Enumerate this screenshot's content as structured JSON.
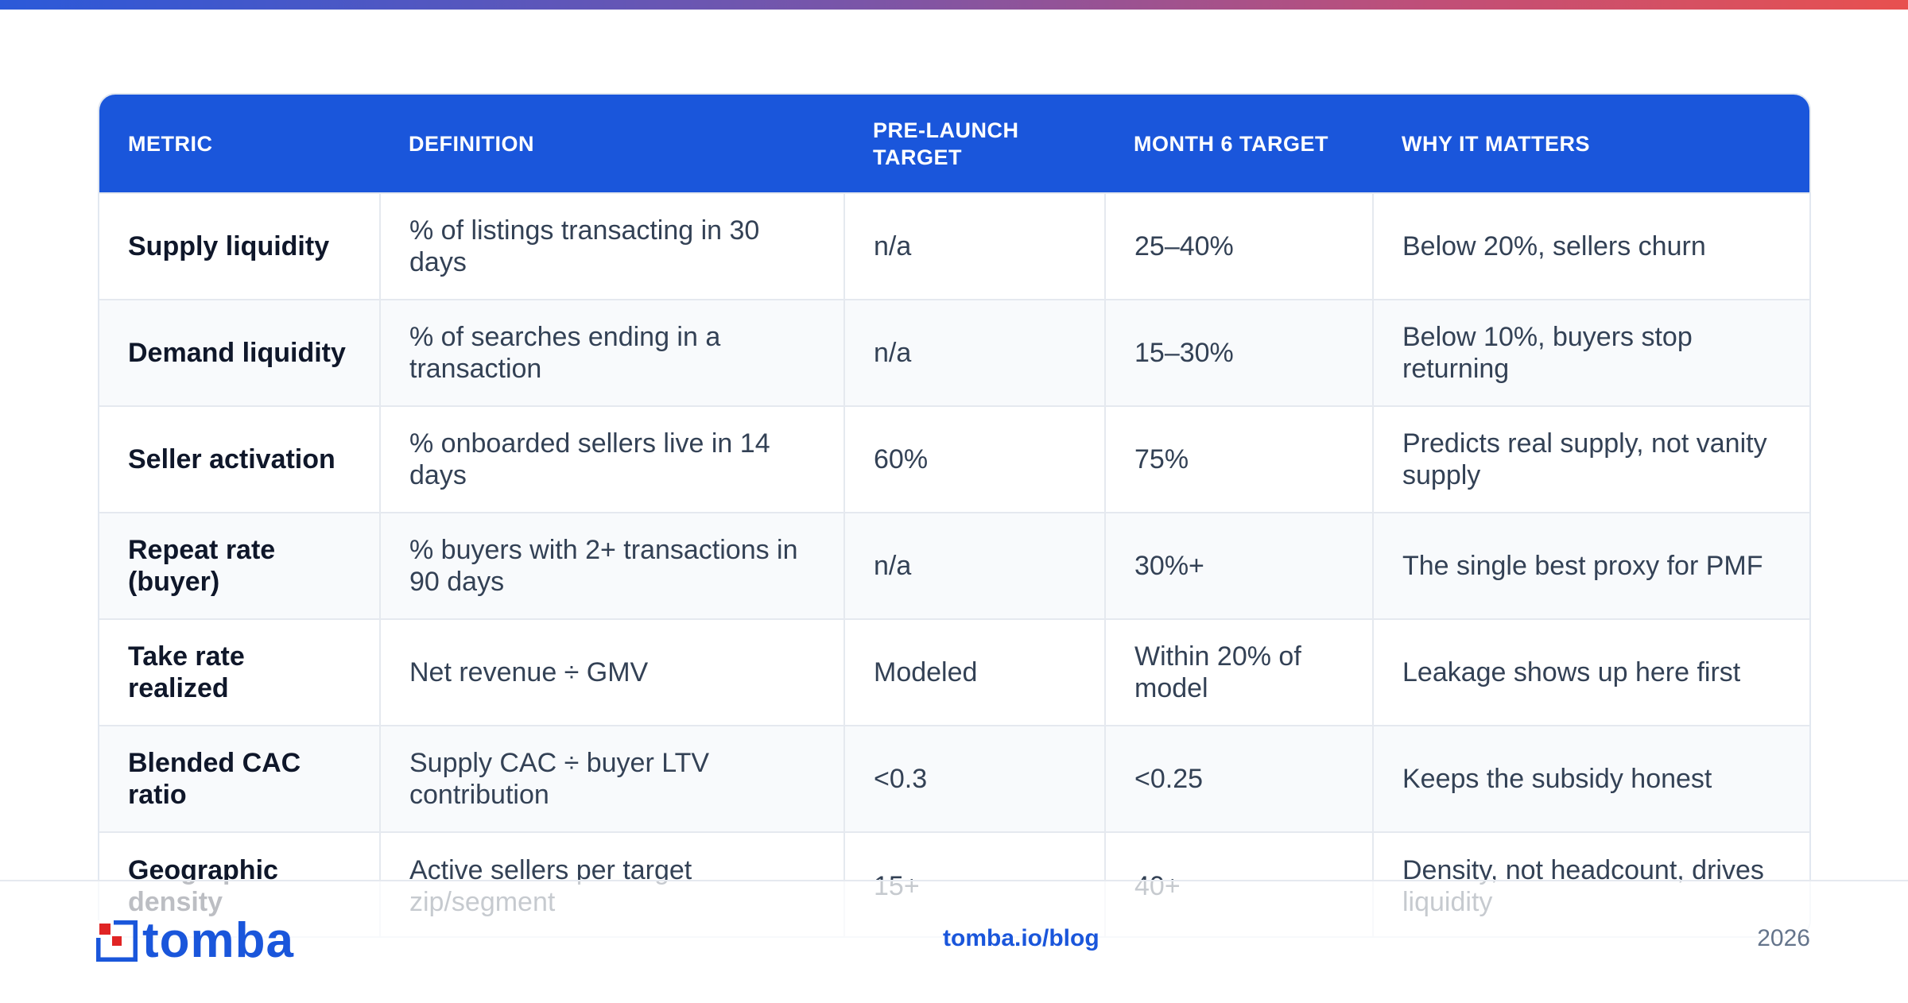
{
  "table": {
    "headers": [
      "METRIC",
      "DEFINITION",
      "PRE-LAUNCH TARGET",
      "MONTH 6 TARGET",
      "WHY IT MATTERS"
    ],
    "rows": [
      {
        "metric": "Supply liquidity",
        "definition": "% of listings transacting in 30 days",
        "pre_launch": "n/a",
        "month6": "25–40%",
        "why": "Below 20%, sellers churn"
      },
      {
        "metric": "Demand liquidity",
        "definition": "% of searches ending in a transaction",
        "pre_launch": "n/a",
        "month6": "15–30%",
        "why": "Below 10%, buyers stop returning"
      },
      {
        "metric": "Seller activation",
        "definition": "% onboarded sellers live in 14 days",
        "pre_launch": "60%",
        "month6": "75%",
        "why": "Predicts real supply, not vanity supply"
      },
      {
        "metric": "Repeat rate (buyer)",
        "definition": "% buyers with 2+ transactions in 90 days",
        "pre_launch": "n/a",
        "month6": "30%+",
        "why": "The single best proxy for PMF"
      },
      {
        "metric": "Take rate realized",
        "definition": "Net revenue ÷ GMV",
        "pre_launch": "Modeled",
        "month6": "Within 20% of model",
        "why": "Leakage shows up here first"
      },
      {
        "metric": "Blended CAC ratio",
        "definition": "Supply CAC ÷ buyer LTV contribution",
        "pre_launch": "<0.3",
        "month6": "<0.25",
        "why": "Keeps the subsidy honest"
      },
      {
        "metric": "Geographic density",
        "definition": "Active sellers per target zip/segment",
        "pre_launch": "15+",
        "month6": "40+",
        "why": "Density, not headcount, drives liquidity"
      }
    ]
  },
  "footer": {
    "logo_text": "tomba",
    "link": "tomba.io/blog",
    "year": "2026"
  },
  "colors": {
    "accent": "#1a56db",
    "logo_red": "#e02424"
  }
}
